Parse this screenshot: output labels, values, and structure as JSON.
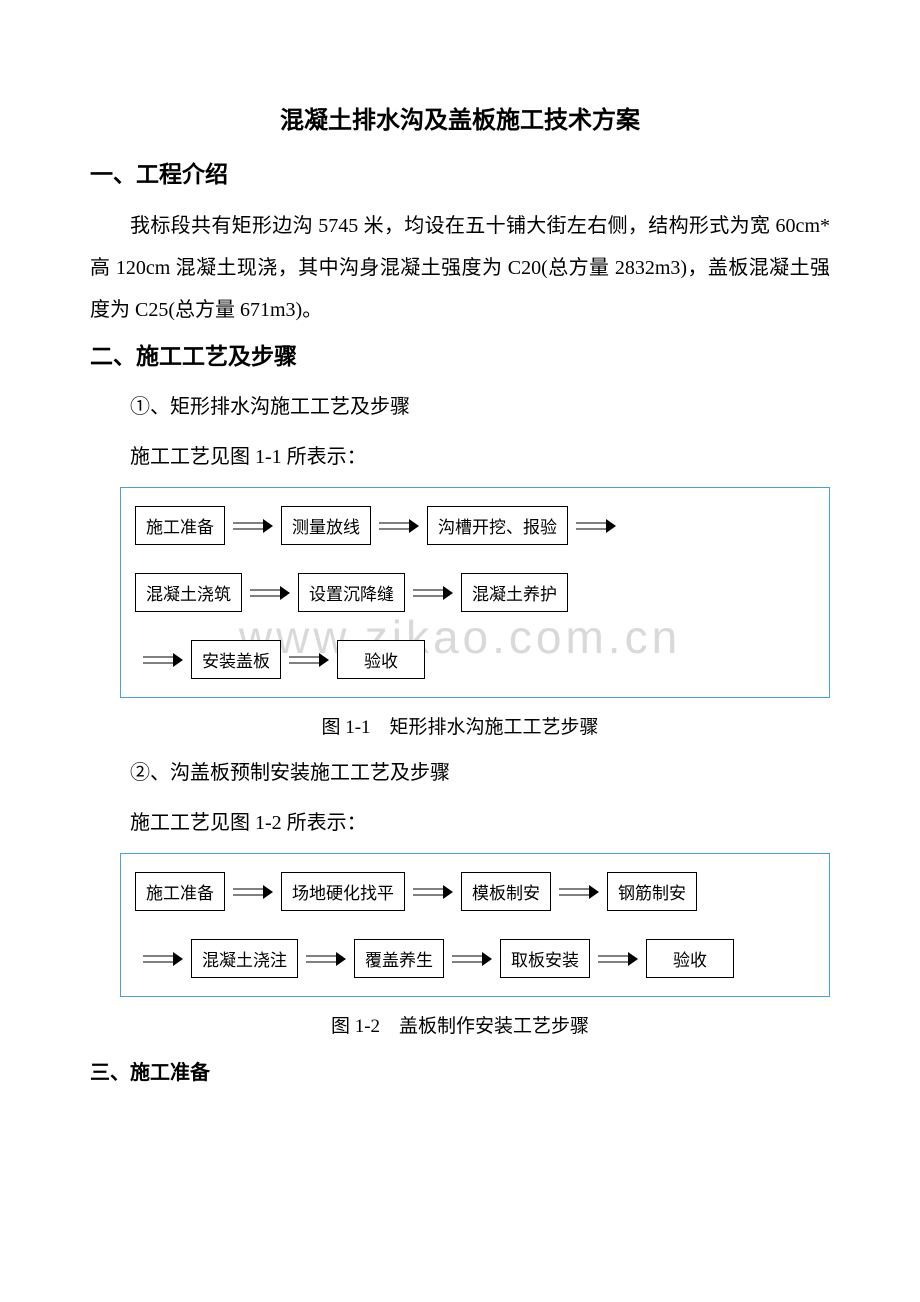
{
  "title": "混凝土排水沟及盖板施工技术方案",
  "section1": {
    "heading": "一、工程介绍",
    "paragraph": "我标段共有矩形边沟 5745 米，均设在五十铺大街左右侧，结构形式为宽 60cm*高 120cm 混凝土现浇，其中沟身混凝土强度为 C20(总方量 2832m3)，盖板混凝土强度为 C25(总方量 671m3)。"
  },
  "section2": {
    "heading": "二、施工工艺及步骤",
    "sub1": "①、矩形排水沟施工工艺及步骤",
    "sub1_caption_pre": "施工工艺见图 1-1 所表示：",
    "fig1_caption": "图 1-1 矩形排水沟施工工艺步骤",
    "sub2": "②、沟盖板预制安装施工工艺及步骤",
    "sub2_caption_pre": "施工工艺见图 1-2 所表示：",
    "fig2_caption": "图 1-2 盖板制作安装工艺步骤"
  },
  "section3": {
    "heading": "三、施工准备"
  },
  "flowchart1": {
    "type": "flowchart",
    "border_color": "#4a9fd8",
    "box_border_color": "#000000",
    "box_bg": "#ffffff",
    "font_size": 17,
    "rows": [
      [
        "施工准备",
        "测量放线",
        "沟槽开挖、报验"
      ],
      [
        "混凝土浇筑",
        "设置沉降缝",
        "混凝土养护"
      ],
      [
        "安装盖板",
        "验收"
      ]
    ],
    "row_trailing_arrow": [
      true,
      false,
      false
    ],
    "row_leading_arrow": [
      false,
      false,
      true
    ]
  },
  "flowchart2": {
    "type": "flowchart",
    "border_color": "#4a9fd8",
    "box_border_color": "#000000",
    "box_bg": "#ffffff",
    "font_size": 17,
    "rows": [
      [
        "施工准备",
        "场地硬化找平",
        "模板制安",
        "钢筋制安"
      ],
      [
        "混凝土浇注",
        "覆盖养生",
        "取板安装",
        "验收"
      ]
    ],
    "row_trailing_arrow": [
      false,
      false
    ],
    "row_leading_arrow": [
      false,
      true
    ]
  },
  "watermark": "www.zikao.com.cn",
  "colors": {
    "text": "#000000",
    "background": "#ffffff",
    "watermark": "#d9d9d9",
    "flow_border": "#4a9fd8"
  }
}
